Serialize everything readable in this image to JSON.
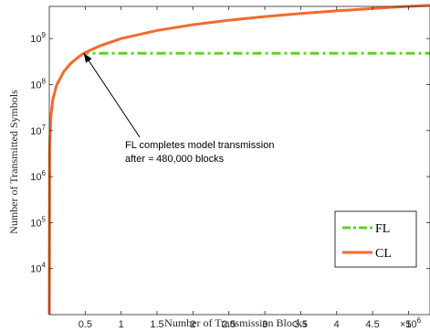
{
  "chart_data": {
    "type": "line",
    "xlabel": "Number of Transmission Blocks",
    "ylabel": "Number of Transmitted Symbols",
    "x_multiplier": {
      "base": "×10",
      "exponent": "6"
    },
    "y_scale": "log",
    "xlim": [
      0,
      5300000
    ],
    "ylim": [
      1000,
      5000000000
    ],
    "x_ticks": [
      500000,
      1000000,
      1500000,
      2000000,
      2500000,
      3000000,
      3500000,
      4000000,
      4500000,
      5000000
    ],
    "x_tick_labels": [
      "0.5",
      "1",
      "1.5",
      "2",
      "2.5",
      "3",
      "3.5",
      "4",
      "4.5",
      "5"
    ],
    "y_ticks": [
      10000,
      100000,
      1000000,
      10000000,
      100000000,
      1000000000
    ],
    "y_tick_labels": [
      {
        "base": "10",
        "exp": "4"
      },
      {
        "base": "10",
        "exp": "5"
      },
      {
        "base": "10",
        "exp": "6"
      },
      {
        "base": "10",
        "exp": "7"
      },
      {
        "base": "10",
        "exp": "8"
      },
      {
        "base": "10",
        "exp": "9"
      }
    ],
    "grid": false,
    "legend_position": "bottom-right",
    "series": [
      {
        "name": "FL",
        "color": "#5fd31f",
        "style": "dash-dot",
        "x": [
          0,
          5000,
          20000,
          50000,
          100000,
          200000,
          300000,
          400000,
          480000,
          1000000,
          2000000,
          3000000,
          4000000,
          5000000,
          5300000
        ],
        "y": [
          1000,
          4200000,
          19000000,
          48000000,
          96000000,
          190000000,
          290000000,
          390000000,
          480000000,
          480000000,
          480000000,
          480000000,
          480000000,
          480000000,
          480000000
        ]
      },
      {
        "name": "CL",
        "color": "#f36a30",
        "style": "solid",
        "x": [
          0,
          5000,
          20000,
          50000,
          100000,
          200000,
          300000,
          400000,
          480000,
          700000,
          1000000,
          1500000,
          2000000,
          2500000,
          3000000,
          3500000,
          4000000,
          4500000,
          5000000,
          5300000
        ],
        "y": [
          1000,
          4200000,
          19000000,
          48000000,
          96000000,
          190000000,
          290000000,
          390000000,
          480000000,
          690000000,
          1000000000,
          1500000000,
          2000000000,
          2500000000,
          3000000000,
          3500000000,
          4000000000,
          4500000000,
          5000000000,
          5300000000
        ]
      }
    ],
    "annotation": {
      "lines": [
        "FL completes model transmission",
        "after ≈ 480,000 blocks"
      ],
      "points_to": {
        "x": 480000,
        "y": 480000000
      }
    }
  }
}
